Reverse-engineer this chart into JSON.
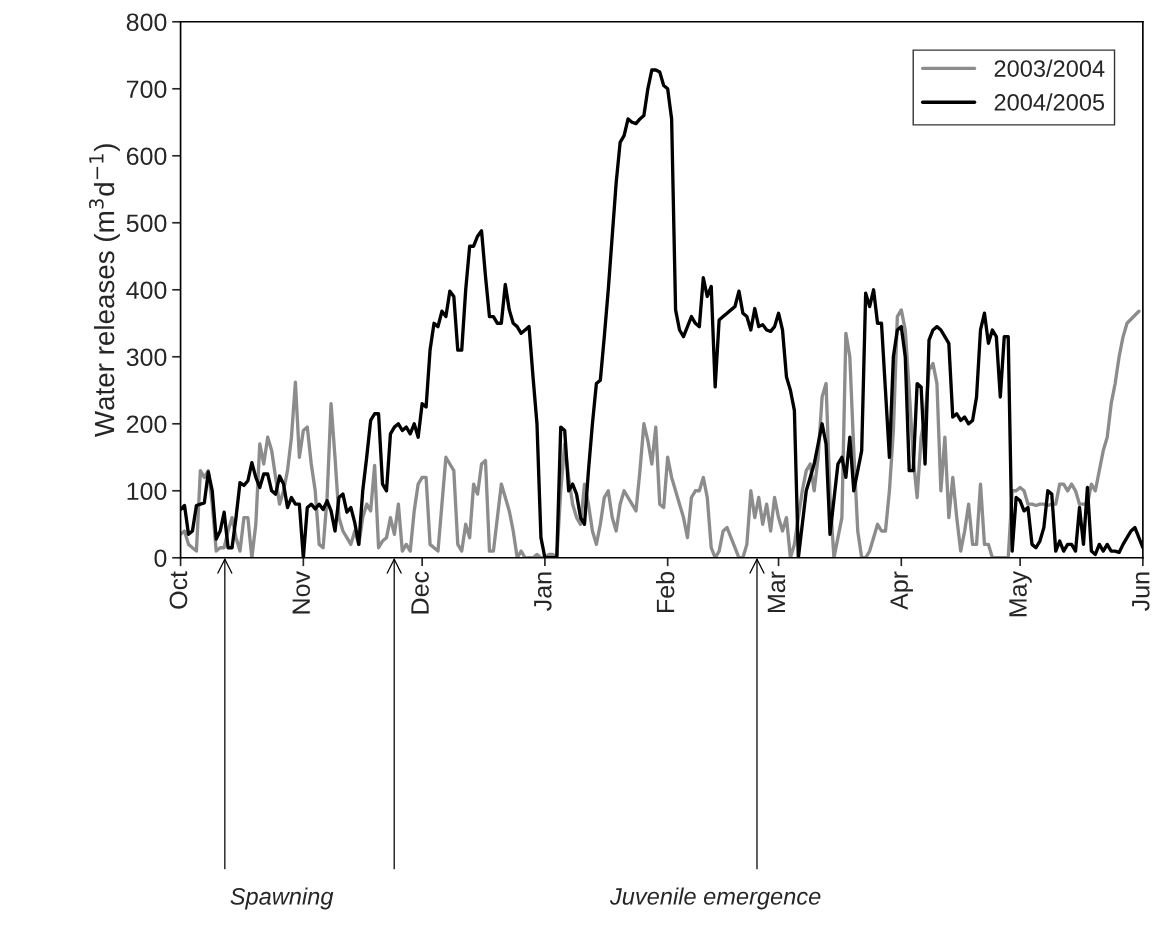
{
  "chart_data": {
    "type": "line",
    "ylabel": "Water releases (m$^{3}$d$^{−1}$)",
    "xlim": [
      "2004-10-01",
      "2005-06-01"
    ],
    "xticks": [
      {
        "value": "2004-10-01",
        "label": "Oct"
      },
      {
        "value": "2004-11-01",
        "label": "Nov"
      },
      {
        "value": "2004-12-01",
        "label": "Dec"
      },
      {
        "value": "2005-01-01",
        "label": "Jan"
      },
      {
        "value": "2005-02-01",
        "label": "Feb"
      },
      {
        "value": "2005-03-01",
        "label": "Mar"
      },
      {
        "value": "2005-04-01",
        "label": "Apr"
      },
      {
        "value": "2005-05-01",
        "label": "May"
      },
      {
        "value": "2005-06-01",
        "label": "Jun"
      }
    ],
    "ylim": [
      0,
      800
    ],
    "yticks": [
      0,
      100,
      200,
      300,
      400,
      500,
      600,
      700,
      800
    ],
    "grid": false,
    "legend": "top right",
    "marker": "none",
    "line_style": "solid",
    "annotations": [
      "Spawning",
      "Juvenile emergence"
    ],
    "series": [
      {
        "name": "2003/2004",
        "color": "#8c8c8c",
        "x": [
          "2004-10-01",
          "2004-10-02",
          "2004-10-03",
          "2004-10-04",
          "2004-10-05",
          "2004-10-06",
          "2004-10-07",
          "2004-10-08",
          "2004-10-09",
          "2004-10-10",
          "2004-10-11",
          "2004-10-12",
          "2004-10-13",
          "2004-10-14",
          "2004-10-15",
          "2004-10-16",
          "2004-10-17",
          "2004-10-18",
          "2004-10-19",
          "2004-10-20",
          "2004-10-21",
          "2004-10-22",
          "2004-10-23",
          "2004-10-24",
          "2004-10-25",
          "2004-10-26",
          "2004-10-27",
          "2004-10-28",
          "2004-10-29",
          "2004-10-30",
          "2004-10-31",
          "2004-11-01",
          "2004-11-02",
          "2004-11-03",
          "2004-11-04",
          "2004-11-05",
          "2004-11-06",
          "2004-11-07",
          "2004-11-08",
          "2004-11-09",
          "2004-11-10",
          "2004-11-11",
          "2004-11-12",
          "2004-11-13",
          "2004-11-14",
          "2004-11-15",
          "2004-11-16",
          "2004-11-17",
          "2004-11-18",
          "2004-11-19",
          "2004-11-20",
          "2004-11-21",
          "2004-11-22",
          "2004-11-23",
          "2004-11-24",
          "2004-11-25",
          "2004-11-26",
          "2004-11-27",
          "2004-11-28",
          "2004-11-29",
          "2004-11-30",
          "2004-12-01",
          "2004-12-02",
          "2004-12-03",
          "2004-12-04",
          "2004-12-05",
          "2004-12-06",
          "2004-12-07",
          "2004-12-08",
          "2004-12-09",
          "2004-12-10",
          "2004-12-11",
          "2004-12-12",
          "2004-12-13",
          "2004-12-14",
          "2004-12-15",
          "2004-12-16",
          "2004-12-17",
          "2004-12-18",
          "2004-12-19",
          "2004-12-20",
          "2004-12-21",
          "2004-12-22",
          "2004-12-23",
          "2004-12-24",
          "2004-12-25",
          "2004-12-26",
          "2004-12-27",
          "2004-12-28",
          "2004-12-29",
          "2004-12-30",
          "2004-12-31",
          "2005-01-01",
          "2005-01-02",
          "2005-01-03",
          "2005-01-04",
          "2005-01-05",
          "2005-01-06",
          "2005-01-07",
          "2005-01-08",
          "2005-01-09",
          "2005-01-10",
          "2005-01-11",
          "2005-01-12",
          "2005-01-13",
          "2005-01-14",
          "2005-01-15",
          "2005-01-16",
          "2005-01-17",
          "2005-01-18",
          "2005-01-19",
          "2005-01-20",
          "2005-01-21",
          "2005-01-22",
          "2005-01-23",
          "2005-01-24",
          "2005-01-25",
          "2005-01-26",
          "2005-01-27",
          "2005-01-28",
          "2005-01-29",
          "2005-01-30",
          "2005-01-31",
          "2005-02-01",
          "2005-02-02",
          "2005-02-03",
          "2005-02-04",
          "2005-02-05",
          "2005-02-06",
          "2005-02-07",
          "2005-02-08",
          "2005-02-09",
          "2005-02-10",
          "2005-02-11",
          "2005-02-12",
          "2005-02-13",
          "2005-02-14",
          "2005-02-15",
          "2005-02-16",
          "2005-02-17",
          "2005-02-18",
          "2005-02-19",
          "2005-02-20",
          "2005-02-21",
          "2005-02-22",
          "2005-02-23",
          "2005-02-24",
          "2005-02-25",
          "2005-02-26",
          "2005-02-27",
          "2005-02-28",
          "2005-03-01",
          "2005-03-02",
          "2005-03-03",
          "2005-03-04",
          "2005-03-05",
          "2005-03-06",
          "2005-03-07",
          "2005-03-08",
          "2005-03-09",
          "2005-03-10",
          "2005-03-11",
          "2005-03-12",
          "2005-03-13",
          "2005-03-14",
          "2005-03-15",
          "2005-03-16",
          "2005-03-17",
          "2005-03-18",
          "2005-03-19",
          "2005-03-20",
          "2005-03-21",
          "2005-03-22",
          "2005-03-23",
          "2005-03-24",
          "2005-03-25",
          "2005-03-26",
          "2005-03-27",
          "2005-03-28",
          "2005-03-29",
          "2005-03-30",
          "2005-03-31",
          "2005-04-01",
          "2005-04-02",
          "2005-04-03",
          "2005-04-04",
          "2005-04-05",
          "2005-04-06",
          "2005-04-07",
          "2005-04-08",
          "2005-04-09",
          "2005-04-10",
          "2005-04-11",
          "2005-04-12",
          "2005-04-13",
          "2005-04-14",
          "2005-04-15",
          "2005-04-16",
          "2005-04-17",
          "2005-04-18",
          "2005-04-19",
          "2005-04-20",
          "2005-04-21",
          "2005-04-22",
          "2005-04-23",
          "2005-04-24",
          "2005-04-25",
          "2005-04-26",
          "2005-04-27",
          "2005-04-28",
          "2005-04-29",
          "2005-04-30",
          "2005-05-01",
          "2005-05-02",
          "2005-05-03",
          "2005-05-04",
          "2005-05-05",
          "2005-05-06",
          "2005-05-07",
          "2005-05-08",
          "2005-05-09",
          "2005-05-10",
          "2005-05-11",
          "2005-05-12",
          "2005-05-13",
          "2005-05-14",
          "2005-05-15",
          "2005-05-16",
          "2005-05-17",
          "2005-05-18",
          "2005-05-19",
          "2005-05-20",
          "2005-05-21",
          "2005-05-22",
          "2005-05-23",
          "2005-05-24",
          "2005-05-25",
          "2005-05-26",
          "2005-05-27",
          "2005-05-28",
          "2005-05-31"
        ],
        "values": [
          35,
          40,
          20,
          15,
          10,
          130,
          120,
          130,
          80,
          10,
          15,
          15,
          40,
          60,
          30,
          10,
          60,
          60,
          0,
          50,
          170,
          140,
          180,
          160,
          120,
          80,
          100,
          130,
          180,
          262,
          150,
          190,
          195,
          140,
          100,
          20,
          15,
          90,
          230,
          150,
          60,
          40,
          30,
          20,
          40,
          20,
          60,
          80,
          70,
          138,
          15,
          25,
          30,
          60,
          35,
          80,
          10,
          20,
          10,
          70,
          110,
          120,
          120,
          20,
          15,
          10,
          80,
          150,
          140,
          130,
          20,
          10,
          50,
          30,
          110,
          95,
          140,
          145,
          10,
          10,
          60,
          110,
          90,
          70,
          40,
          0,
          10,
          0,
          0,
          0,
          5,
          0,
          0,
          5,
          5,
          0,
          100,
          170,
          120,
          80,
          60,
          50,
          110,
          80,
          40,
          20,
          50,
          90,
          100,
          60,
          40,
          80,
          100,
          90,
          80,
          70,
          130,
          200,
          175,
          140,
          195,
          80,
          75,
          150,
          120,
          100,
          80,
          60,
          30,
          90,
          100,
          100,
          120,
          90,
          15,
          0,
          10,
          40,
          45,
          30,
          15,
          0,
          0,
          20,
          100,
          60,
          90,
          50,
          80,
          40,
          90,
          60,
          40,
          60,
          0,
          20,
          60,
          100,
          130,
          140,
          100,
          150,
          240,
          260,
          90,
          0,
          30,
          60,
          335,
          300,
          160,
          40,
          0,
          0,
          10,
          30,
          50,
          40,
          40,
          100,
          190,
          360,
          370,
          340,
          250,
          150,
          90,
          180,
          210,
          280,
          290,
          260,
          100,
          180,
          60,
          120,
          60,
          10,
          40,
          80,
          20,
          20,
          110,
          20,
          20,
          0,
          0,
          0,
          0,
          0,
          100,
          100,
          105,
          100,
          80,
          80,
          78,
          80,
          80,
          78,
          80,
          80,
          110,
          110,
          100,
          110,
          100,
          80,
          80,
          80,
          110,
          100,
          130,
          160,
          180,
          230,
          260,
          300,
          330,
          350,
          368
        ]
      },
      {
        "name": "2004/2005",
        "color": "#000000",
        "x": [
          "2004-10-01",
          "2004-10-02",
          "2004-10-03",
          "2004-10-04",
          "2004-10-05",
          "2004-10-07",
          "2004-10-08",
          "2004-10-09",
          "2004-10-10",
          "2004-10-11",
          "2004-10-12",
          "2004-10-13",
          "2004-10-14",
          "2004-10-15",
          "2004-10-16",
          "2004-10-17",
          "2004-10-18",
          "2004-10-19",
          "2004-10-20",
          "2004-10-21",
          "2004-10-22",
          "2004-10-23",
          "2004-10-24",
          "2004-10-25",
          "2004-10-26",
          "2004-10-27",
          "2004-10-28",
          "2004-10-29",
          "2004-10-30",
          "2004-10-31",
          "2004-11-01",
          "2004-11-02",
          "2004-11-03",
          "2004-11-04",
          "2004-11-05",
          "2004-11-06",
          "2004-11-07",
          "2004-11-08",
          "2004-11-09",
          "2004-11-10",
          "2004-11-11",
          "2004-11-12",
          "2004-11-13",
          "2004-11-14",
          "2004-11-15",
          "2004-11-16",
          "2004-11-17",
          "2004-11-18",
          "2004-11-19",
          "2004-11-20",
          "2004-11-21",
          "2004-11-22",
          "2004-11-23",
          "2004-11-24",
          "2004-11-25",
          "2004-11-26",
          "2004-11-27",
          "2004-11-28",
          "2004-11-29",
          "2004-11-30",
          "2004-12-01",
          "2004-12-02",
          "2004-12-03",
          "2004-12-04",
          "2004-12-05",
          "2004-12-06",
          "2004-12-07",
          "2004-12-08",
          "2004-12-09",
          "2004-12-10",
          "2004-12-11",
          "2004-12-12",
          "2004-12-13",
          "2004-12-14",
          "2004-12-15",
          "2004-12-16",
          "2004-12-17",
          "2004-12-18",
          "2004-12-19",
          "2004-12-20",
          "2004-12-21",
          "2004-12-22",
          "2004-12-23",
          "2004-12-24",
          "2004-12-25",
          "2004-12-26",
          "2004-12-27",
          "2004-12-28",
          "2004-12-29",
          "2004-12-30",
          "2004-12-31",
          "2005-01-01",
          "2005-01-02",
          "2005-01-03",
          "2005-01-04",
          "2005-01-05",
          "2005-01-06",
          "2005-01-07",
          "2005-01-08",
          "2005-01-09",
          "2005-01-10",
          "2005-01-11",
          "2005-01-12",
          "2005-01-13",
          "2005-01-14",
          "2005-01-15",
          "2005-01-16",
          "2005-01-17",
          "2005-01-18",
          "2005-01-19",
          "2005-01-20",
          "2005-01-21",
          "2005-01-22",
          "2005-01-23",
          "2005-01-24",
          "2005-01-25",
          "2005-01-26",
          "2005-01-27",
          "2005-01-28",
          "2005-01-29",
          "2005-01-30",
          "2005-01-31",
          "2005-02-01",
          "2005-02-02",
          "2005-02-03",
          "2005-02-04",
          "2005-02-05",
          "2005-02-06",
          "2005-02-07",
          "2005-02-08",
          "2005-02-09",
          "2005-02-10",
          "2005-02-11",
          "2005-02-12",
          "2005-02-13",
          "2005-02-14",
          "2005-02-15",
          "2005-02-16",
          "2005-02-17",
          "2005-02-18",
          "2005-02-19",
          "2005-02-20",
          "2005-02-21",
          "2005-02-22",
          "2005-02-23",
          "2005-02-24",
          "2005-02-25",
          "2005-02-26",
          "2005-02-27",
          "2005-02-28",
          "2005-03-01",
          "2005-03-02",
          "2005-03-03",
          "2005-03-04",
          "2005-03-05",
          "2005-03-06",
          "2005-03-08",
          "2005-03-10",
          "2005-03-12",
          "2005-03-13",
          "2005-03-14",
          "2005-03-16",
          "2005-03-17",
          "2005-03-18",
          "2005-03-19",
          "2005-03-20",
          "2005-03-22",
          "2005-03-23",
          "2005-03-24",
          "2005-03-25",
          "2005-03-26",
          "2005-03-27",
          "2005-03-28",
          "2005-03-29",
          "2005-03-30",
          "2005-03-31",
          "2005-04-01",
          "2005-04-02",
          "2005-04-03",
          "2005-04-04",
          "2005-04-05",
          "2005-04-06",
          "2005-04-07",
          "2005-04-08",
          "2005-04-09",
          "2005-04-10",
          "2005-04-11",
          "2005-04-12",
          "2005-04-13",
          "2005-04-14",
          "2005-04-15",
          "2005-04-16",
          "2005-04-17",
          "2005-04-18",
          "2005-04-19",
          "2005-04-20",
          "2005-04-21",
          "2005-04-22",
          "2005-04-23",
          "2005-04-24",
          "2005-04-25",
          "2005-04-26",
          "2005-04-27",
          "2005-04-28",
          "2005-04-29",
          "2005-04-30",
          "2005-05-01",
          "2005-05-02",
          "2005-05-03",
          "2005-05-04",
          "2005-05-05",
          "2005-05-06",
          "2005-05-07",
          "2005-05-08",
          "2005-05-09",
          "2005-05-10",
          "2005-05-11",
          "2005-05-12",
          "2005-05-13",
          "2005-05-14",
          "2005-05-15",
          "2005-05-16",
          "2005-05-17",
          "2005-05-18",
          "2005-05-19",
          "2005-05-20",
          "2005-05-21",
          "2005-05-22",
          "2005-05-23",
          "2005-05-24",
          "2005-05-25",
          "2005-05-26",
          "2005-05-27",
          "2005-05-28",
          "2005-05-29",
          "2005-05-30",
          "2005-05-31",
          "2005-06-01"
        ],
        "values": [
          72,
          78,
          35,
          40,
          78,
          82,
          128,
          100,
          28,
          40,
          68,
          15,
          15,
          60,
          112,
          108,
          115,
          142,
          120,
          105,
          125,
          125,
          100,
          95,
          122,
          110,
          75,
          90,
          80,
          80,
          0,
          75,
          80,
          73,
          80,
          72,
          85,
          70,
          40,
          90,
          95,
          68,
          75,
          52,
          20,
          100,
          150,
          205,
          215,
          215,
          110,
          100,
          185,
          195,
          200,
          190,
          195,
          185,
          200,
          180,
          230,
          225,
          310,
          350,
          345,
          368,
          360,
          398,
          390,
          310,
          310,
          400,
          465,
          465,
          480,
          488,
          420,
          360,
          360,
          350,
          350,
          408,
          370,
          350,
          345,
          335,
          340,
          345,
          270,
          200,
          30,
          0,
          0,
          0,
          0,
          195,
          190,
          100,
          110,
          95,
          60,
          50,
          130,
          200,
          260,
          265,
          330,
          400,
          480,
          560,
          620,
          630,
          655,
          650,
          648,
          655,
          660,
          700,
          728,
          728,
          725,
          705,
          700,
          655,
          370,
          340,
          330,
          345,
          360,
          350,
          345,
          418,
          390,
          405,
          255,
          355,
          360,
          365,
          370,
          375,
          398,
          365,
          360,
          340,
          372,
          345,
          348,
          340,
          338,
          345,
          365,
          340,
          270,
          250,
          220,
          0,
          100,
          140,
          200,
          170,
          35,
          140,
          150,
          120,
          180,
          100,
          160,
          395,
          375,
          400,
          350,
          350,
          250,
          150,
          300,
          340,
          345,
          300,
          130,
          130,
          260,
          255,
          140,
          325,
          340,
          345,
          340,
          330,
          320,
          210,
          215,
          205,
          210,
          200,
          205,
          240,
          340,
          365,
          320,
          340,
          330,
          240,
          330,
          330,
          10,
          90,
          85,
          70,
          75,
          20,
          15,
          25,
          45,
          100,
          95,
          10,
          25,
          10,
          20,
          20,
          10,
          75,
          20,
          105,
          10,
          5,
          20,
          10,
          20,
          10,
          10,
          8,
          20,
          30,
          40,
          45,
          30,
          15
        ]
      }
    ]
  }
}
